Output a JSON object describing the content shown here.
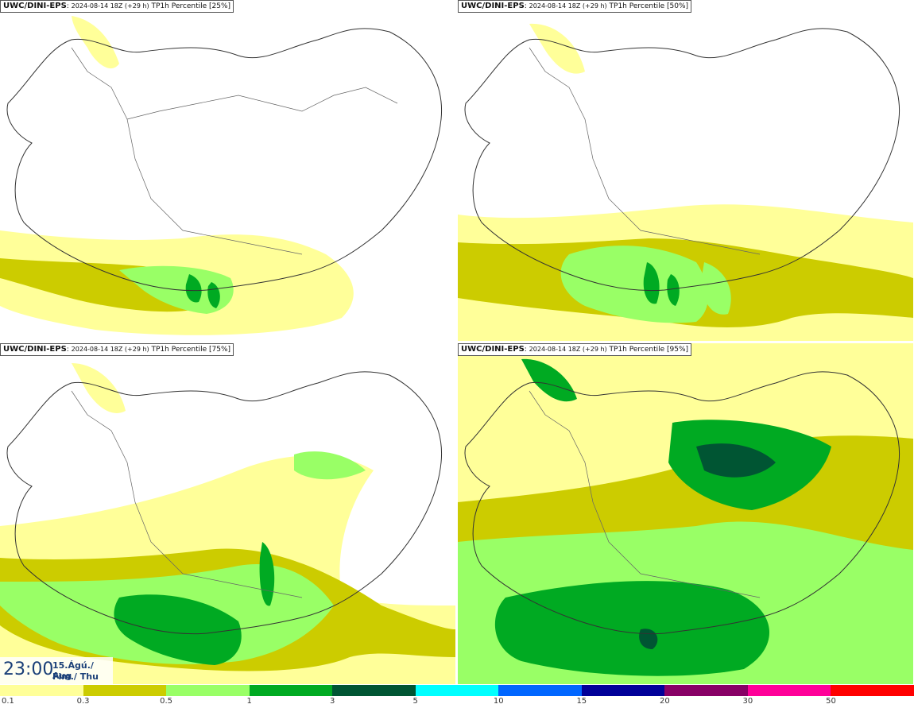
{
  "panels": [
    {
      "model": "UWC/DINI-EPS",
      "run": "2024-08-14 18Z (+29 h)",
      "product": "TP1h Percentile [25%]"
    },
    {
      "model": "UWC/DINI-EPS",
      "run": "2024-08-14 18Z (+29 h)",
      "product": "TP1h Percentile [50%]"
    },
    {
      "model": "UWC/DINI-EPS",
      "run": "2024-08-14 18Z (+29 h)",
      "product": "TP1h Percentile [75%]"
    },
    {
      "model": "UWC/DINI-EPS",
      "run": "2024-08-14 18Z (+29 h)",
      "product": "TP1h Percentile [95%]"
    }
  ],
  "valid_time": {
    "time": "23:00",
    "date_line1": "15.Ágú./ Aug",
    "date_line2": "Fim./ Thu"
  },
  "legend": {
    "colors": [
      "#ffff99",
      "#cccc00",
      "#99ff66",
      "#00aa22",
      "#005533",
      "#00ffff",
      "#0066ff",
      "#000099",
      "#880066",
      "#ff0099",
      "#ff0000"
    ],
    "labels": [
      "0.1",
      "0.3",
      "0.5",
      "1",
      "3",
      "5",
      "10",
      "15",
      "20",
      "30",
      "50"
    ]
  }
}
